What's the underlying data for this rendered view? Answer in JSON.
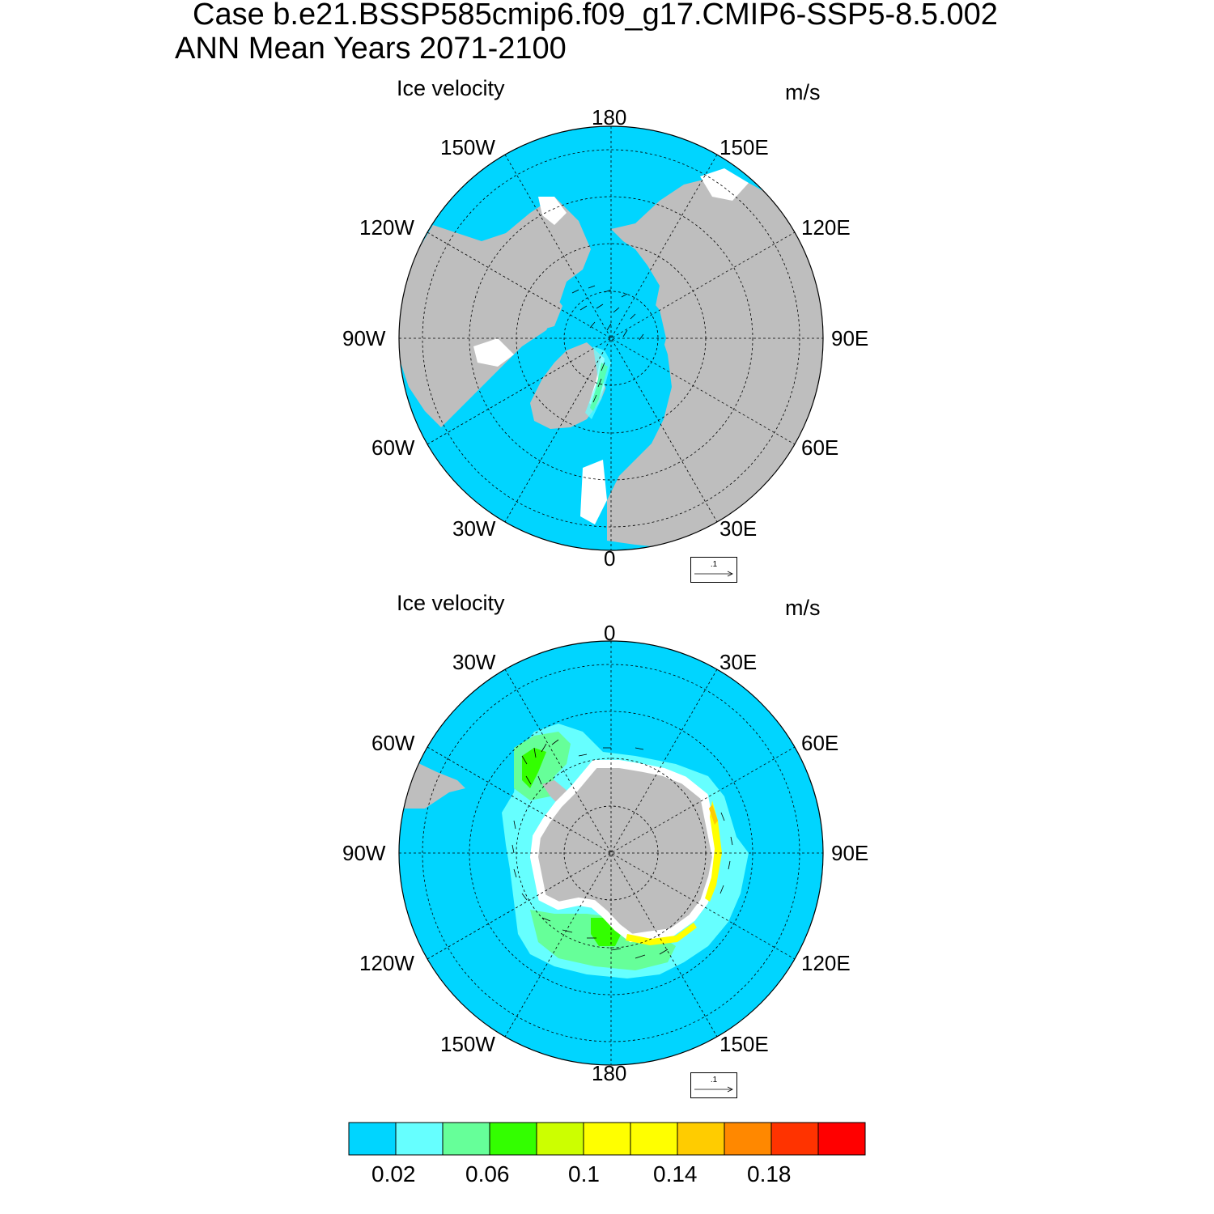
{
  "header": {
    "case_line": "Case b.e21.BSSP585cmip6.f09_g17.CMIP6-SSP5-8.5.002",
    "period_line": "ANN Mean   Years 2071-2100"
  },
  "panels": [
    {
      "id": "north",
      "title": "Ice velocity",
      "units": "m/s",
      "lon_labels": [
        "180",
        "150E",
        "120E",
        "90E",
        "60E",
        "30E",
        "0",
        "30W",
        "60W",
        "90W",
        "120W",
        "150W"
      ],
      "reference_vector": ".1"
    },
    {
      "id": "south",
      "title": "Ice velocity",
      "units": "m/s",
      "lon_labels": [
        "0",
        "30E",
        "60E",
        "90E",
        "120E",
        "150E",
        "180",
        "150W",
        "120W",
        "90W",
        "60W",
        "30W"
      ],
      "reference_vector": ".1"
    }
  ],
  "colorbar": {
    "colors": [
      "#00d5ff",
      "#66ffff",
      "#66ff99",
      "#33ff00",
      "#ccff00",
      "#ffff00",
      "#ffff00",
      "#ffcc00",
      "#ff8800",
      "#ff3300",
      "#ff0000"
    ],
    "labels": [
      "0.02",
      "0.06",
      "0.1",
      "0.14",
      "0.18"
    ]
  },
  "map_colors": {
    "ocean": "#00d5ff",
    "land": "#bebebe",
    "no_data": "#ffffff"
  }
}
